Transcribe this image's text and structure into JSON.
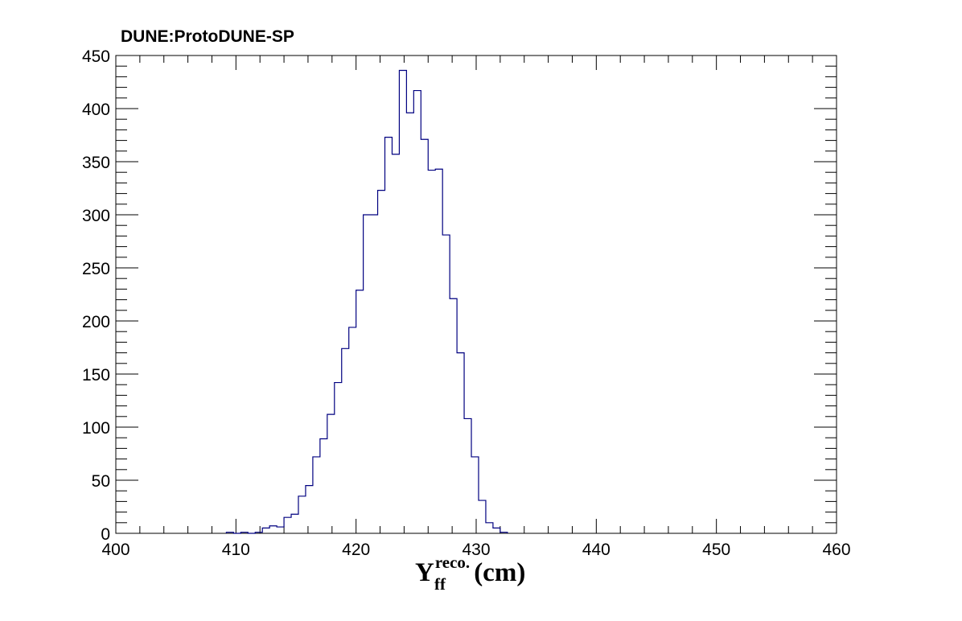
{
  "chart_data": {
    "type": "histogram",
    "title": "DUNE:ProtoDUNE-SP",
    "xlabel": {
      "symbol": "Y",
      "superscript": "reco.",
      "subscript": "ff",
      "unit": "(cm)"
    },
    "ylabel": "",
    "xlim": [
      400,
      460
    ],
    "ylim": [
      0,
      450
    ],
    "xticks": [
      400,
      410,
      420,
      430,
      440,
      450,
      460
    ],
    "yticks": [
      0,
      50,
      100,
      150,
      200,
      250,
      300,
      350,
      400,
      450
    ],
    "bin_width": 0.6,
    "bin_edges_start": 409.2,
    "values": [
      1,
      0,
      1,
      0,
      1,
      5,
      7,
      6,
      15,
      18,
      35,
      45,
      72,
      89,
      112,
      142,
      174,
      194,
      229,
      300,
      300,
      323,
      373,
      357,
      436,
      396,
      417,
      371,
      342,
      343,
      281,
      221,
      170,
      108,
      72,
      31,
      10,
      5,
      1
    ],
    "line_color": "#000080",
    "grid": false
  }
}
